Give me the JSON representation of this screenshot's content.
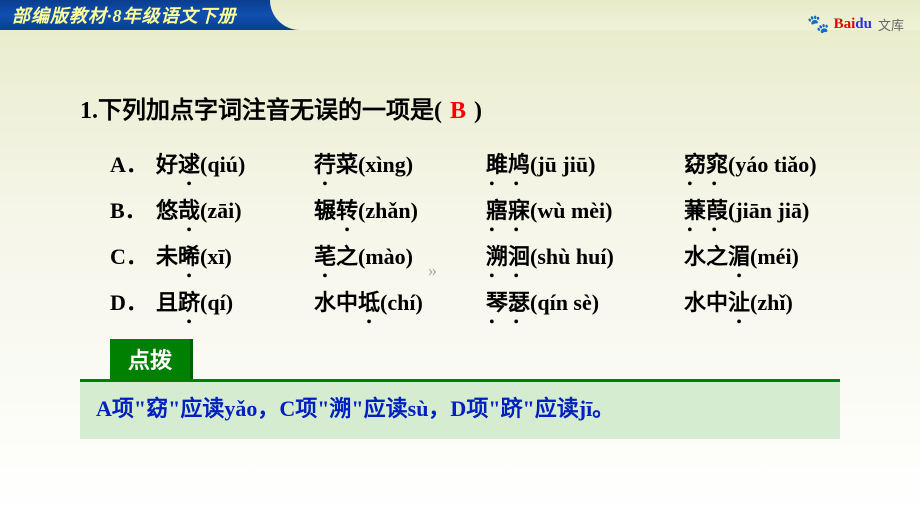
{
  "header": {
    "title": "部编版教材·8年级语文下册",
    "logo_paw": "🐾",
    "logo_bai": "Bai",
    "logo_du": "du",
    "logo_wenku": "文库",
    "header_bg_color": "#0a3d8f",
    "header_text_color": "#ffff99",
    "page_bg_top": "#e8ebc8",
    "page_bg_bottom": "#ffffff"
  },
  "question": {
    "number": "1.",
    "text": "下列加点字词注音无误的一项是(",
    "answer": "B",
    "closing": ")",
    "answer_color": "#ff0000"
  },
  "options": [
    {
      "label": "A．",
      "cells": [
        {
          "chars": "好",
          "dotted": "逑",
          "pinyin": "(qiú)"
        },
        {
          "chars": "",
          "dotted": "荇",
          "tail": "菜",
          "pinyin": "(xìng)"
        },
        {
          "chars": "",
          "dotted2": "雎鸠",
          "pinyin": "(jū jiū)"
        },
        {
          "chars": "",
          "dotted2": "窈窕",
          "pinyin": "(yáo tiǎo)"
        }
      ]
    },
    {
      "label": "B．",
      "cells": [
        {
          "chars": "悠",
          "dotted": "哉",
          "pinyin": "(zāi)"
        },
        {
          "chars": "辗",
          "dotted": "转",
          "pinyin": "(zhǎn)"
        },
        {
          "chars": "",
          "dotted2": "寤寐",
          "pinyin": "(wù mèi)"
        },
        {
          "chars": "",
          "dotted2": "蒹葭",
          "pinyin": "(jiān jiā)"
        }
      ]
    },
    {
      "label": "C．",
      "cells": [
        {
          "chars": "未",
          "dotted": "晞",
          "pinyin": "(xī)"
        },
        {
          "chars": "",
          "dotted": "芼",
          "tail": "之",
          "pinyin": "(mào)"
        },
        {
          "chars": "",
          "dotted2": "溯洄",
          "pinyin": "(shù huí)"
        },
        {
          "chars": "水之",
          "dotted": "湄",
          "pinyin": "(méi)"
        }
      ]
    },
    {
      "label": "D．",
      "cells": [
        {
          "chars": "且",
          "dotted": "跻",
          "pinyin": "(qí)"
        },
        {
          "chars": "水中",
          "dotted": "坻",
          "pinyin": "(chí)"
        },
        {
          "chars": "",
          "dotted2": "琴瑟",
          "pinyin": "(qín sè)"
        },
        {
          "chars": "水中",
          "dotted": "沚",
          "pinyin": "(zhǐ)"
        }
      ]
    }
  ],
  "dianbo": {
    "label": "点拨",
    "label_bg": "#008000",
    "label_color": "#ffffff",
    "line_color": "#008000",
    "box_bg": "#d6ecd0",
    "text_color": "#0020c0",
    "text": "A项\"窈\"应读yǎo，C项\"溯\"应读sù，D项\"跻\"应读jī。"
  },
  "arrow": "»"
}
